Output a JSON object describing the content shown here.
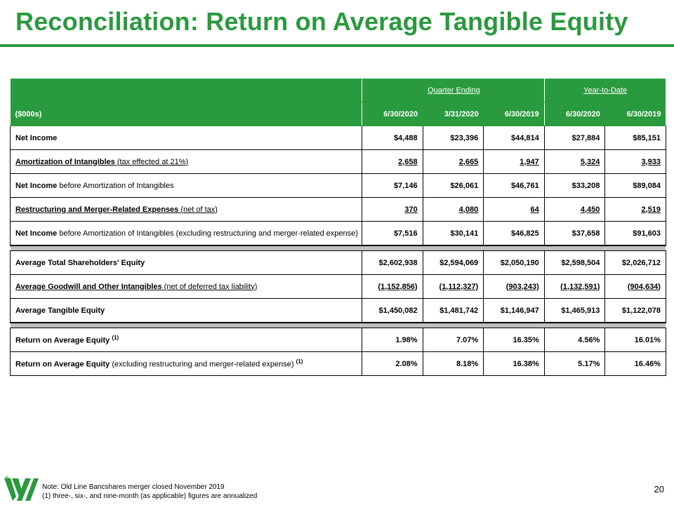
{
  "title": "Reconciliation: Return on Average Tangible Equity",
  "header": {
    "group_quarter": "Quarter Ending",
    "group_ytd": "Year-to-Date",
    "unit_label": "($000s)",
    "cols": [
      "6/30/2020",
      "3/31/2020",
      "6/30/2019",
      "6/30/2020",
      "6/30/2019"
    ]
  },
  "rows": [
    {
      "main": "Net Income",
      "suffix": "",
      "sup": "",
      "values": [
        "$4,488",
        "$23,396",
        "$44,814",
        "$27,884",
        "$85,151"
      ]
    },
    {
      "main": "Amortization of Intangibles",
      "suffix": " (tax effected at 21%)",
      "sup": "",
      "values": [
        "2,658",
        "2,665",
        "1,947",
        "5,324",
        "3,933"
      ]
    },
    {
      "main": "Net Income",
      "suffix": " before Amortization of Intangibles",
      "sup": "",
      "values": [
        "$7,146",
        "$26,061",
        "$46,761",
        "$33,208",
        "$89,084"
      ]
    },
    {
      "main": "Restructuring and Merger-Related Expenses",
      "suffix": " (net of tax)",
      "sup": "",
      "values": [
        "370",
        "4,080",
        "64",
        "4,450",
        "2,519"
      ]
    },
    {
      "main": "Net Income",
      "suffix": " before Amortization of Intangibles (excluding restructuring and merger-related expense)",
      "sup": "",
      "values": [
        "$7,516",
        "$30,141",
        "$46,825",
        "$37,658",
        "$91,603"
      ]
    },
    {
      "main": "Average Total Shareholders' Equity",
      "suffix": "",
      "sup": "",
      "values": [
        "$2,602,938",
        "$2,594,069",
        "$2,050,190",
        "$2,598,504",
        "$2,026,712"
      ]
    },
    {
      "main": "Average Goodwill and Other Intangibles",
      "suffix": " (net of deferred tax liability)",
      "sup": "",
      "values": [
        "(1,152,856)",
        "(1,112,327)",
        "(903,243)",
        "(1,132,591)",
        "(904,634)"
      ]
    },
    {
      "main": "Average Tangible Equity",
      "suffix": "",
      "sup": "",
      "values": [
        "$1,450,082",
        "$1,481,742",
        "$1,146,947",
        "$1,465,913",
        "$1,122,078"
      ]
    },
    {
      "main": "Return on Average Equity",
      "suffix": " ",
      "sup": "(1)",
      "values": [
        "1.98%",
        "7.07%",
        "16.35%",
        "4.56%",
        "16.01%"
      ]
    },
    {
      "main": "Return on Average Equity",
      "suffix": " (excluding restructuring and merger-related expense) ",
      "sup": "(1)",
      "values": [
        "2.08%",
        "8.18%",
        "16.38%",
        "5.17%",
        "16.46%"
      ]
    }
  ],
  "footer": {
    "note_line1": "Note: Old Line Bancshares merger closed November 2019",
    "note_line2": "(1) three-, six-, and nine-month (as applicable) figures are annualized",
    "page_number": "20"
  },
  "colors": {
    "brand_green": "#2a9a3e",
    "separator_gray": "#bfbfbf"
  },
  "logo_icon": "wesbanco-w-logo-icon"
}
